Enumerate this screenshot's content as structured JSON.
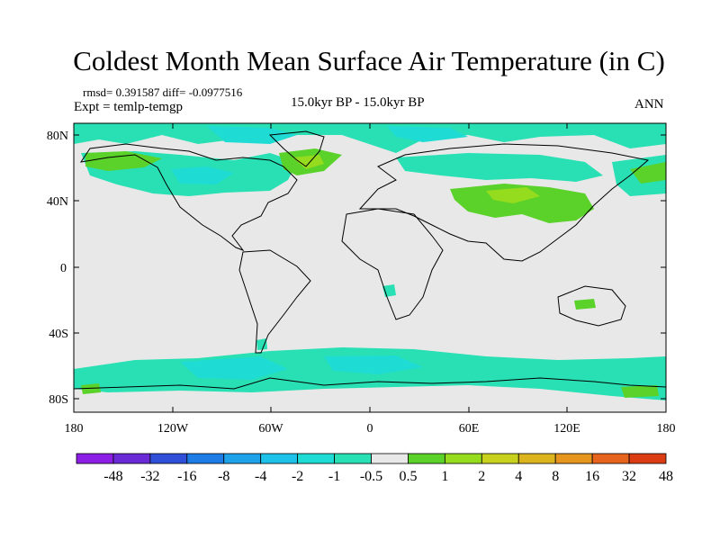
{
  "title": "Coldest Month Mean Surface Air Temperature (in C)",
  "stats": "rmsd= 0.391587 diff= -0.0977516",
  "experiment": "Expt = temlp-temgp",
  "period": "15.0kyr BP - 15.0kyr BP",
  "season": "ANN",
  "map": {
    "lat_ticks": [
      "80N",
      "40N",
      "0",
      "40S",
      "80S"
    ],
    "lon_ticks": [
      "180",
      "120W",
      "60W",
      "0",
      "60E",
      "120E",
      "180"
    ],
    "background": "#e8e8e8"
  },
  "colorbar": {
    "labels": [
      "-48",
      "-32",
      "-16",
      "-8",
      "-4",
      "-2",
      "-1",
      "-0.5",
      "0.5",
      "1",
      "2",
      "4",
      "8",
      "16",
      "32",
      "48"
    ],
    "colors": [
      "#8c1ee6",
      "#6a2ad6",
      "#2f4fd8",
      "#1e7ce6",
      "#1ea2ea",
      "#1ec2e8",
      "#1edcd4",
      "#28e0b4",
      "#e8e8e8",
      "#5ad22a",
      "#96dc1e",
      "#c8d21e",
      "#dcb41e",
      "#e6961e",
      "#e6641e",
      "#dc3c14"
    ]
  }
}
